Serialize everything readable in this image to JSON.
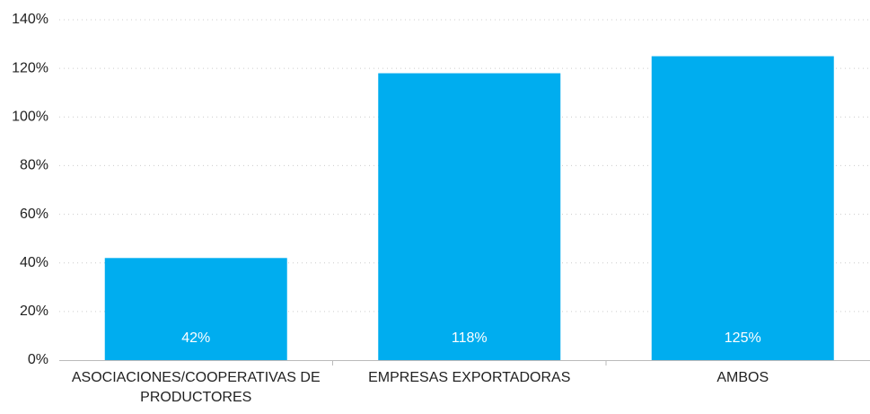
{
  "chart_data": {
    "type": "bar",
    "categories": [
      "ASOCIACIONES/COOPERATIVAS DE PRODUCTORES",
      "EMPRESAS EXPORTADORAS",
      "AMBOS"
    ],
    "values": [
      42,
      118,
      125
    ],
    "value_labels": [
      "42%",
      "118%",
      "125%"
    ],
    "color": "#00adef",
    "ylim": [
      0,
      140
    ],
    "yticks": [
      {
        "value": 0,
        "label": "0%"
      },
      {
        "value": 20,
        "label": "20%"
      },
      {
        "value": 40,
        "label": "40%"
      },
      {
        "value": 60,
        "label": "60%"
      },
      {
        "value": 80,
        "label": "80%"
      },
      {
        "value": 100,
        "label": "100%"
      },
      {
        "value": 120,
        "label": "120%"
      },
      {
        "value": 140,
        "label": "140%"
      }
    ],
    "grid": true
  }
}
